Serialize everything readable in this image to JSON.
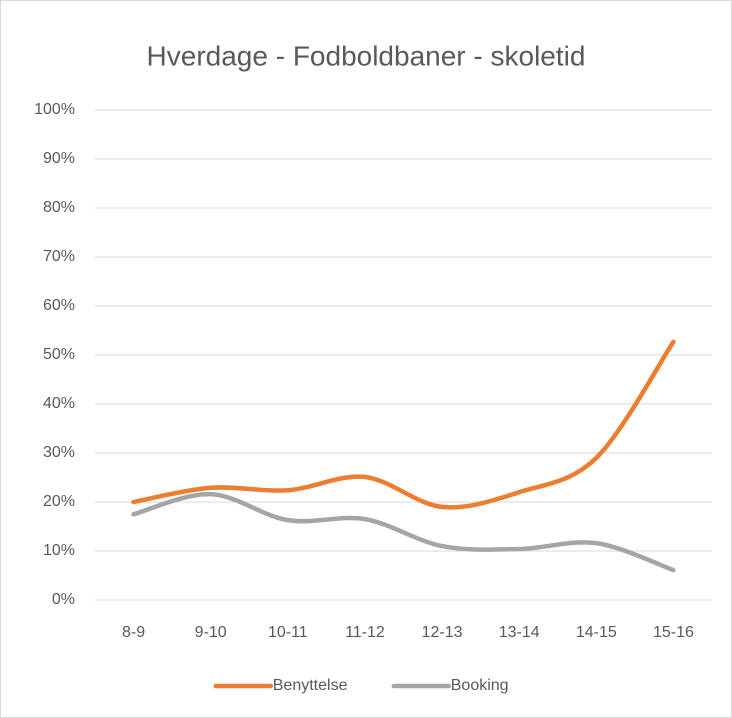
{
  "chart_data": {
    "type": "line",
    "title": "Hverdage - Fodboldbaner - skoletid",
    "categories": [
      "8-9",
      "9-10",
      "10-11",
      "11-12",
      "12-13",
      "13-14",
      "14-15",
      "15-16"
    ],
    "series": [
      {
        "name": "Benyttelse",
        "color": "#ed7d31",
        "values": [
          20,
          22.9,
          22.4,
          25.1,
          19,
          22,
          29,
          52.7
        ]
      },
      {
        "name": "Booking",
        "color": "#a5a5a5",
        "values": [
          17.5,
          21.6,
          16.3,
          16.5,
          11,
          10.4,
          11.6,
          6.1
        ]
      }
    ],
    "ylim": [
      0,
      100
    ],
    "yticks": [
      {
        "value": 0,
        "label": "0%"
      },
      {
        "value": 10,
        "label": "10%"
      },
      {
        "value": 20,
        "label": "20%"
      },
      {
        "value": 30,
        "label": "30%"
      },
      {
        "value": 40,
        "label": "40%"
      },
      {
        "value": 50,
        "label": "50%"
      },
      {
        "value": 60,
        "label": "60%"
      },
      {
        "value": 70,
        "label": "70%"
      },
      {
        "value": 80,
        "label": "80%"
      },
      {
        "value": 90,
        "label": "90%"
      },
      {
        "value": 100,
        "label": "100%"
      }
    ],
    "grid": true,
    "legend": "bottom",
    "smooth": true
  }
}
